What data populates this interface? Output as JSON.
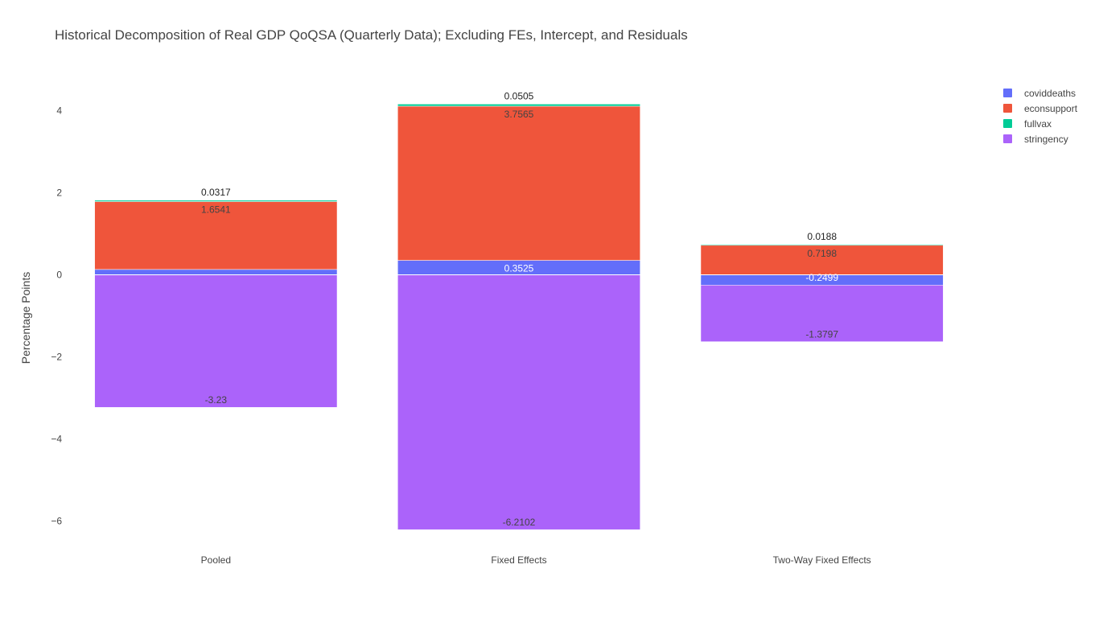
{
  "chart_data": {
    "type": "bar",
    "title": "Historical Decomposition of Real GDP QoQSA (Quarterly Data); Excluding FEs, Intercept, and Residuals",
    "xlabel": "",
    "ylabel": "Percentage Points",
    "categories": [
      "Pooled",
      "Fixed Effects",
      "Two-Way Fixed Effects"
    ],
    "ylim": [
      -6.6,
      4.8
    ],
    "yticks": [
      {
        "value": 4,
        "label": "4"
      },
      {
        "value": 2,
        "label": "2"
      },
      {
        "value": 0,
        "label": "0"
      },
      {
        "value": -2,
        "label": "−2"
      },
      {
        "value": -4,
        "label": "−4"
      },
      {
        "value": -6,
        "label": "−6"
      }
    ],
    "barmode": "relative",
    "legend_position": "top-right",
    "grid": false,
    "series": [
      {
        "name": "coviddeaths",
        "color": "#636efa",
        "values": [
          0.1303,
          0.3525,
          -0.2499
        ],
        "labels": [
          "",
          "0.3525",
          "-0.2499"
        ],
        "label_color": "#ffffff"
      },
      {
        "name": "econsupport",
        "color": "#ef553b",
        "values": [
          1.6541,
          3.7565,
          0.7198
        ],
        "labels": [
          "1.6541",
          "3.7565",
          "0.7198"
        ],
        "label_color": "#444444"
      },
      {
        "name": "fullvax",
        "color": "#00cc96",
        "values": [
          0.0317,
          0.0505,
          0.0188
        ],
        "labels": [
          "0.0317",
          "0.0505",
          "0.0188"
        ],
        "label_color": "#222222"
      },
      {
        "name": "stringency",
        "color": "#ab63fa",
        "values": [
          -3.23,
          -6.2102,
          -1.3797
        ],
        "labels": [
          "-3.23",
          "-6.2102",
          "-1.3797"
        ],
        "label_color": "#444444"
      }
    ]
  }
}
